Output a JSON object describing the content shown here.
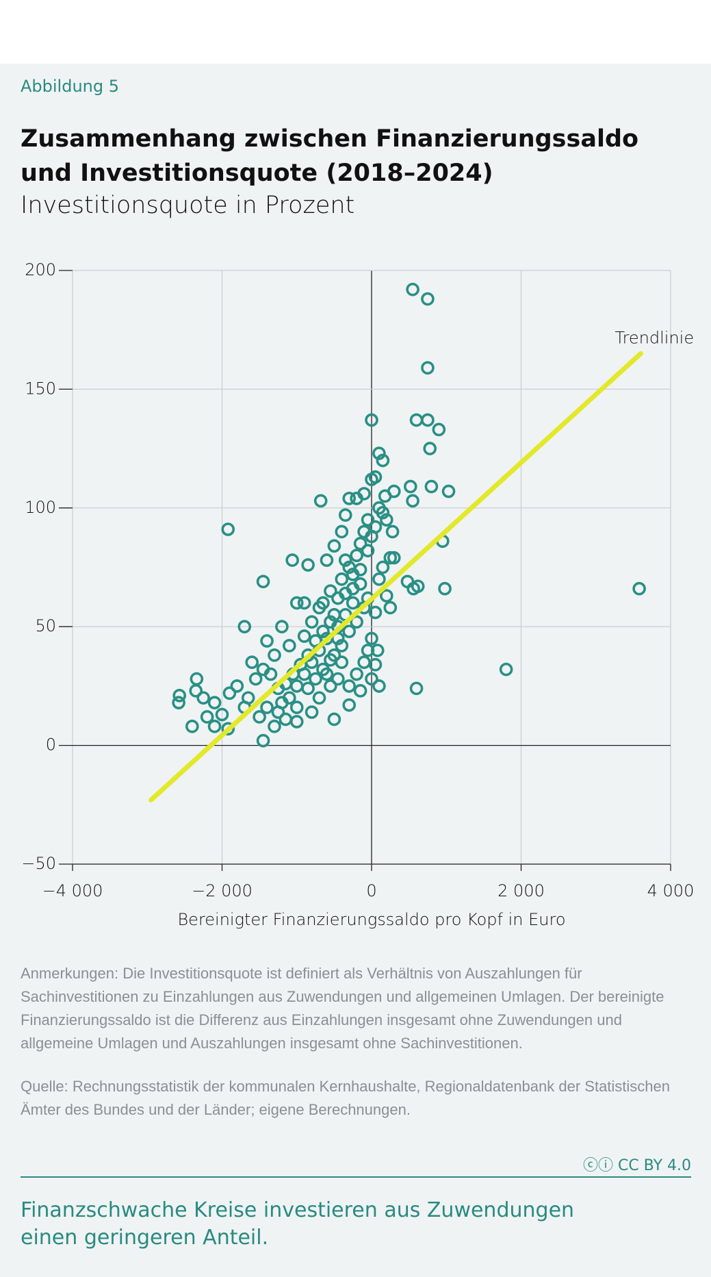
{
  "figure_label": "Abbildung 5",
  "chart_data": {
    "type": "scatter",
    "title": "Zusammenhang zwischen Finanzierungssaldo und Investitionsquote (2018–2024)",
    "subtitle": "Investitionsquote in Prozent",
    "x_label": "Bereinigter Finanzierungssaldo pro Kopf in Euro",
    "color": "#2a8f85",
    "x": [
      550,
      750,
      750,
      0,
      600,
      750,
      900,
      780,
      100,
      150,
      1030,
      800,
      550,
      520,
      -680,
      -1920,
      950,
      3580,
      1800,
      600,
      980,
      620,
      560,
      480,
      -1450,
      -1060,
      -1700,
      -1450,
      -2340,
      -2570,
      -2580,
      -2400,
      -2100,
      -2350,
      -2250,
      -2100,
      -1920,
      -1000,
      -500,
      -550,
      -150,
      0,
      100,
      50,
      80,
      -300,
      -800,
      -1150,
      -1300,
      -1500,
      -1650,
      -1800,
      -1600,
      -1400,
      -1200,
      -1000,
      -900,
      -850,
      -600,
      -500,
      -400,
      -350,
      -300,
      -200,
      -100,
      0,
      50,
      180,
      300,
      200,
      280,
      250,
      300,
      150,
      100,
      200,
      250,
      50,
      0,
      -50,
      -100,
      -200,
      -300,
      -400,
      -450,
      -500,
      -550,
      -400,
      -300,
      -200,
      -150,
      -100,
      -50,
      100,
      150,
      -250,
      -350,
      -450,
      -600,
      -700,
      -800,
      -900,
      -1000,
      -1100,
      -1200,
      -700,
      -600,
      -500,
      -400,
      -300,
      -200,
      -100,
      -50,
      -150,
      -250,
      -350,
      -450,
      -550,
      -650,
      -750,
      -850,
      -950,
      -1050,
      -1150,
      -1250,
      -1350,
      -1450,
      -1550,
      -1300,
      -1100,
      -900,
      -800,
      -700,
      -650,
      -350,
      -250,
      -150,
      -50,
      0,
      50,
      -1000,
      -850,
      -750,
      -650,
      -550,
      -450,
      -1250,
      -1400,
      -1700,
      -1900,
      -2000,
      -2200
    ],
    "y": [
      192,
      188,
      159,
      137,
      137,
      137,
      133,
      125,
      123,
      120,
      107,
      109,
      103,
      109,
      103,
      91,
      86,
      66,
      32,
      24,
      66,
      67,
      66,
      69,
      69,
      78,
      50,
      2,
      28,
      21,
      18,
      8,
      8,
      23,
      20,
      18,
      7,
      10,
      11,
      25,
      23,
      28,
      25,
      34,
      40,
      17,
      14,
      11,
      8,
      12,
      20,
      25,
      35,
      44,
      50,
      60,
      60,
      76,
      78,
      84,
      90,
      97,
      104,
      104,
      106,
      112,
      113,
      105,
      107,
      95,
      90,
      79,
      79,
      75,
      70,
      63,
      58,
      56,
      45,
      40,
      35,
      30,
      25,
      35,
      45,
      55,
      65,
      70,
      75,
      80,
      85,
      90,
      95,
      100,
      98,
      60,
      55,
      50,
      45,
      40,
      35,
      30,
      25,
      20,
      18,
      20,
      30,
      38,
      42,
      48,
      52,
      58,
      62,
      68,
      72,
      78,
      62,
      52,
      48,
      44,
      38,
      34,
      30,
      26,
      24,
      30,
      32,
      28,
      38,
      42,
      46,
      52,
      58,
      60,
      64,
      66,
      74,
      82,
      88,
      92,
      16,
      24,
      28,
      32,
      36,
      28,
      14,
      16,
      16,
      22,
      13,
      12
    ],
    "trendline": {
      "label": "Trendlinie",
      "color": "#e3e829",
      "x": [
        -2950,
        3600
      ],
      "y": [
        -23,
        165
      ]
    },
    "xlim": [
      -4000,
      4000
    ],
    "xticks": [
      {
        "value": -4000,
        "label": "−4 000"
      },
      {
        "value": -2000,
        "label": "−2 000"
      },
      0,
      {
        "value": 2000,
        "label": "2 000"
      },
      {
        "value": 4000,
        "label": "4 000"
      }
    ],
    "ylim": [
      -50,
      200
    ],
    "yticks": [
      {
        "value": -50,
        "label": "−50"
      },
      0,
      50,
      100,
      150,
      200
    ],
    "grid": true
  },
  "notes": "Anmerkungen: Die Investitionsquote ist definiert als Verhältnis von Auszahlungen für Sachinvestitionen zu Einzahlungen aus Zuwendungen und allgemeinen Umlagen. Der bereinigte Finanzierungssaldo ist die Differenz aus Einzahlungen insgesamt ohne Zuwendungen und allgemeine Umlagen und Auszahlungen insgesamt ohne Sachinvestitionen.",
  "source": "Quelle: Rechnungsstatistik der kommunalen Kernhaushalte, Regionaldatenbank der Statistischen Ämter des Bundes und der Länder; eigene Berechnungen.",
  "license": "CC BY 4.0",
  "takeaway": "Finanzschwache Kreise investieren aus Zuwendungen einen geringeren Anteil."
}
